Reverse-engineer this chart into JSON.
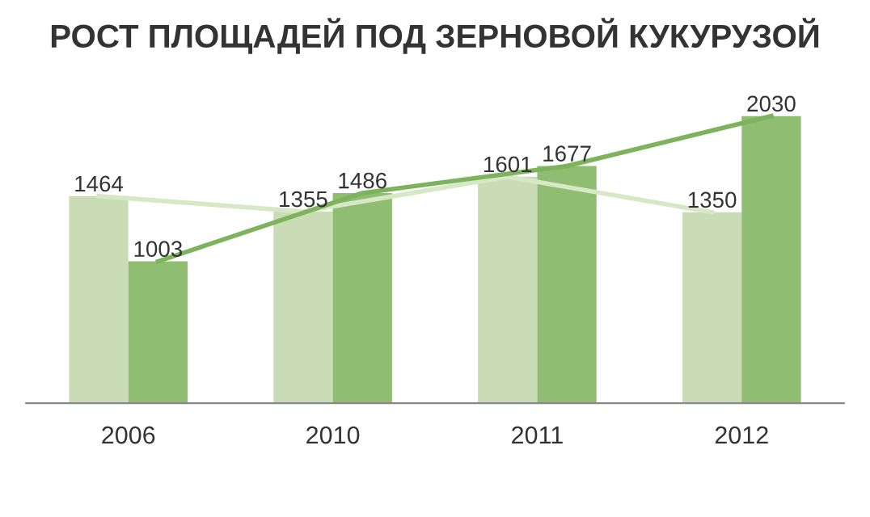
{
  "chart_data": {
    "type": "bar",
    "title": "РОСТ ПЛОЩАДЕЙ ПОД ЗЕРНОВОЙ КУКУРУЗОЙ",
    "categories": [
      "2006",
      "2010",
      "2011",
      "2012"
    ],
    "series": [
      {
        "color": "#cadcb6",
        "values": [
          1464,
          1355,
          1601,
          1350
        ],
        "value_labels": [
          "1464",
          "1355",
          "1601",
          "1350"
        ]
      },
      {
        "color": "#8fbd72",
        "values": [
          1003,
          1486,
          1677,
          2030
        ],
        "value_labels": [
          "1003",
          "1486",
          "1677",
          "2030"
        ]
      },
      {
        "type": "line",
        "color": "#d6e8c6",
        "values": [
          1464,
          1355,
          1601,
          1350
        ]
      },
      {
        "type": "line",
        "color": "#7cb35c",
        "values": [
          1003,
          1486,
          1677,
          2030
        ]
      }
    ],
    "grid": false,
    "legend": false
  }
}
